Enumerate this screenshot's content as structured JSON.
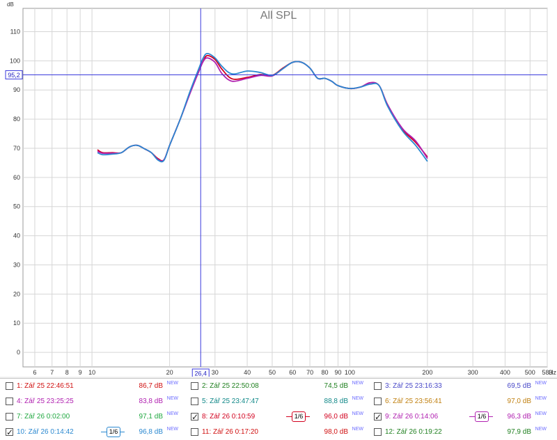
{
  "chart_data": {
    "type": "line",
    "title": "All SPL",
    "ylabel": "dB",
    "xlabel": "Hz",
    "x_scale": "log",
    "xlim": [
      5.4,
      583
    ],
    "ylim": [
      -5,
      118
    ],
    "x_ticks": [
      {
        "value": 6,
        "label": "6"
      },
      {
        "value": 7,
        "label": "7"
      },
      {
        "value": 8,
        "label": "8"
      },
      {
        "value": 9,
        "label": "9"
      },
      {
        "value": 10,
        "label": "10"
      },
      {
        "value": 20,
        "label": "20"
      },
      {
        "value": 30,
        "label": "30"
      },
      {
        "value": 40,
        "label": "40"
      },
      {
        "value": 50,
        "label": "50"
      },
      {
        "value": 60,
        "label": "60"
      },
      {
        "value": 70,
        "label": "70"
      },
      {
        "value": 80,
        "label": "80"
      },
      {
        "value": 90,
        "label": "90"
      },
      {
        "value": 100,
        "label": "100"
      },
      {
        "value": 200,
        "label": "200"
      },
      {
        "value": 300,
        "label": "300"
      },
      {
        "value": 400,
        "label": "400"
      },
      {
        "value": 500,
        "label": "500"
      },
      {
        "value": 583,
        "label": "583"
      }
    ],
    "y_ticks": [
      0,
      10,
      20,
      30,
      40,
      50,
      60,
      70,
      80,
      90,
      100,
      110
    ],
    "cursor": {
      "x": 26.4,
      "y": 95.2,
      "x_label": "26,4",
      "y_label": "95,2"
    },
    "series": [
      {
        "name": "8: Zář 26 0:10:59",
        "color": "#d2001e",
        "x": [
          10.5,
          11,
          12,
          13,
          14,
          15,
          16,
          17,
          18,
          19,
          20,
          22,
          24,
          26,
          27,
          28,
          30,
          32,
          35,
          40,
          45,
          50,
          55,
          60,
          65,
          70,
          75,
          80,
          85,
          90,
          100,
          110,
          120,
          130,
          140,
          160,
          180,
          200
        ],
        "y": [
          69.5,
          68.5,
          68.5,
          68.5,
          70.5,
          71.0,
          69.8,
          68.5,
          66.5,
          66.0,
          71.0,
          80.0,
          89.0,
          96.5,
          100.0,
          101.8,
          100.5,
          97.0,
          93.8,
          94.3,
          95.3,
          95.0,
          97.5,
          99.5,
          99.5,
          97.5,
          94.0,
          94.0,
          93.0,
          91.5,
          90.5,
          91.0,
          92.5,
          91.5,
          85.0,
          76.5,
          72.0,
          67.0
        ]
      },
      {
        "name": "9: Zář 26 0:14:06",
        "color": "#b020b0",
        "x": [
          10.5,
          11,
          12,
          13,
          14,
          15,
          16,
          17,
          18,
          19,
          20,
          22,
          24,
          26,
          27,
          28,
          30,
          32,
          35,
          40,
          45,
          50,
          55,
          60,
          65,
          70,
          75,
          80,
          85,
          90,
          100,
          110,
          120,
          130,
          140,
          160,
          180,
          200
        ],
        "y": [
          69.0,
          68.3,
          68.3,
          68.5,
          70.5,
          71.0,
          69.8,
          68.5,
          66.2,
          66.0,
          71.0,
          80.0,
          88.8,
          96.5,
          99.8,
          101.0,
          99.5,
          95.5,
          93.0,
          94.0,
          95.0,
          94.8,
          97.3,
          99.5,
          99.5,
          97.5,
          94.0,
          94.0,
          93.0,
          91.5,
          90.5,
          91.0,
          92.5,
          91.5,
          85.0,
          76.8,
          72.5,
          66.5
        ]
      },
      {
        "name": "10: Zář 26 0:14:42",
        "color": "#2a88d0",
        "x": [
          10.5,
          11,
          12,
          13,
          14,
          15,
          16,
          17,
          18,
          19,
          20,
          22,
          24,
          26,
          27,
          28,
          30,
          32,
          35,
          40,
          45,
          50,
          55,
          60,
          65,
          70,
          75,
          80,
          85,
          90,
          100,
          110,
          120,
          130,
          140,
          160,
          180,
          200
        ],
        "y": [
          68.5,
          67.8,
          68.0,
          68.5,
          70.5,
          71.0,
          69.8,
          68.5,
          66.0,
          65.8,
          71.0,
          80.0,
          89.5,
          97.5,
          101.0,
          102.5,
          101.0,
          98.0,
          95.5,
          96.5,
          96.0,
          95.0,
          97.3,
          99.5,
          99.5,
          97.5,
          94.0,
          94.0,
          93.0,
          91.5,
          90.5,
          91.0,
          92.0,
          91.5,
          84.5,
          76.0,
          71.0,
          65.5
        ]
      }
    ]
  },
  "legend": [
    {
      "label": "1: Zář 25 22:46:51",
      "value": "86,7 dB",
      "new": "NEW",
      "checked": false,
      "color": "#d01010",
      "value_color": "#d01010"
    },
    {
      "label": "2: Zář 25 22:50:08",
      "value": "74,5 dB",
      "new": "NEW",
      "checked": false,
      "color": "#208020",
      "value_color": "#208020"
    },
    {
      "label": "3: Zář 25 23:16:33",
      "value": "69,5 dB",
      "new": "NEW",
      "checked": false,
      "color": "#4848c8",
      "value_color": "#4848c8"
    },
    {
      "label": "4: Zář 25 23:25:25",
      "value": "83,8 dB",
      "new": "NEW",
      "checked": false,
      "color": "#b020b0",
      "value_color": "#b020b0"
    },
    {
      "label": "5: Zář 25 23:47:47",
      "value": "88,8 dB",
      "new": "NEW",
      "checked": false,
      "color": "#108888",
      "value_color": "#108888"
    },
    {
      "label": "6: Zář 25 23:56:41",
      "value": "97,0 dB",
      "new": "NEW",
      "checked": false,
      "color": "#c08010",
      "value_color": "#c08010"
    },
    {
      "label": "7: Zář 26 0:02:00",
      "value": "97,1 dB",
      "new": "NEW",
      "checked": false,
      "color": "#20a840",
      "value_color": "#20a840"
    },
    {
      "label": "8: Zář 26 0:10:59",
      "value": "96,0 dB",
      "new": "NEW",
      "checked": true,
      "color": "#d2001e",
      "value_color": "#d2001e",
      "smoothing": "1/6"
    },
    {
      "label": "9: Zář 26 0:14:06",
      "value": "96,3 dB",
      "new": "NEW",
      "checked": true,
      "color": "#b020b0",
      "value_color": "#b020b0",
      "smoothing": "1/6"
    },
    {
      "label": "10: Zář 26 0:14:42",
      "value": "96,8 dB",
      "new": "NEW",
      "checked": true,
      "color": "#2a88d0",
      "value_color": "#2a88d0",
      "smoothing": "1/6"
    },
    {
      "label": "11: Zář 26 0:17:20",
      "value": "98,0 dB",
      "new": "NEW",
      "checked": false,
      "color": "#d01010",
      "value_color": "#d01010"
    },
    {
      "label": "12: Zář 26 0:19:22",
      "value": "97,9 dB",
      "new": "NEW",
      "checked": false,
      "color": "#208020",
      "value_color": "#208020"
    }
  ]
}
